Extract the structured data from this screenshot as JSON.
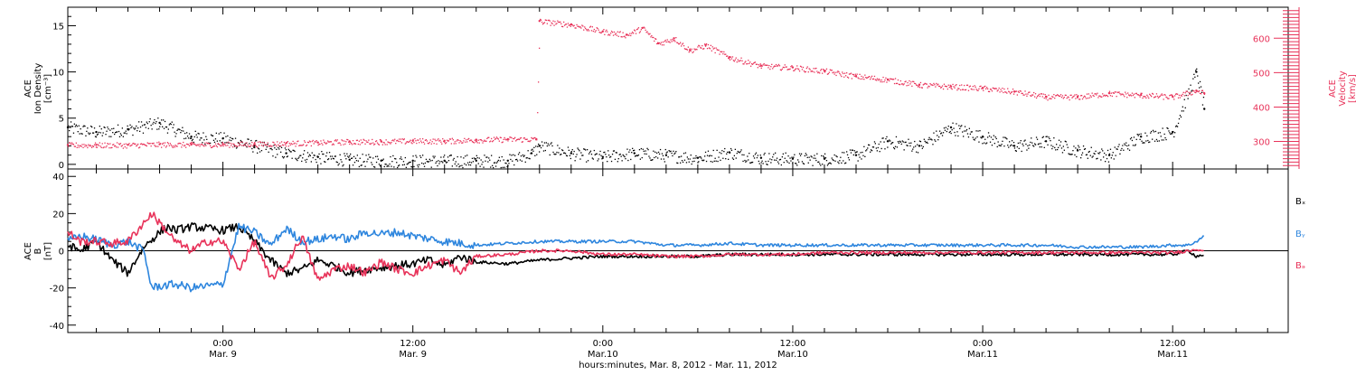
{
  "colors": {
    "density": "#000000",
    "velocity": "#e8335a",
    "bx": "#000000",
    "by": "#2e86de",
    "bz": "#e8335a"
  },
  "x_axis": {
    "title": "hours:minutes, Mar.  8, 2012 - Mar. 11, 2012",
    "ticks": [
      {
        "hours": 24,
        "time": "0:00",
        "date": "Mar. 9"
      },
      {
        "hours": 36,
        "time": "12:00",
        "date": "Mar. 9"
      },
      {
        "hours": 48,
        "time": "0:00",
        "date": "Mar.10"
      },
      {
        "hours": 60,
        "time": "12:00",
        "date": "Mar.10"
      },
      {
        "hours": 72,
        "time": "0:00",
        "date": "Mar.11"
      },
      {
        "hours": 84,
        "time": "12:00",
        "date": "Mar.11"
      }
    ]
  },
  "chart_data": [
    {
      "type": "scatter",
      "panel": "top",
      "xlim_hours": [
        14.2,
        91.3
      ],
      "y_left": {
        "title_lines": [
          "ACE",
          "Ion Density",
          "[cm⁻³]"
        ],
        "ylim": [
          -0.5,
          17
        ],
        "ticks": [
          0,
          5,
          10,
          15
        ]
      },
      "y_right": {
        "title_lines": [
          "ACE",
          "Velocity",
          "[km/s]"
        ],
        "ylim": [
          220,
          690
        ],
        "ticks": [
          300,
          400,
          500,
          600
        ]
      },
      "series": [
        {
          "key": "density",
          "axis": "left",
          "x_hours": [
            14.2,
            16,
            18,
            20,
            22,
            24,
            26,
            28,
            30,
            32,
            34,
            36,
            38,
            40,
            42,
            43.5,
            44,
            46,
            48,
            50,
            52,
            54,
            56,
            58,
            60,
            62,
            64,
            66,
            68,
            70,
            72,
            74,
            76,
            78,
            80,
            82,
            84,
            85.5,
            86
          ],
          "values": [
            4,
            3.5,
            3.8,
            4.5,
            3,
            2.8,
            2,
            1.2,
            0.8,
            0.5,
            0.4,
            0.4,
            0.4,
            0.4,
            0.4,
            1.2,
            2,
            1.2,
            0.8,
            1.2,
            1,
            0.7,
            1.3,
            0.7,
            0.6,
            0.6,
            1,
            2.5,
            2,
            4,
            3,
            2,
            2.5,
            1.5,
            1,
            3,
            3.5,
            10,
            6
          ]
        },
        {
          "key": "velocity",
          "axis": "right",
          "x_hours": [
            14.2,
            16,
            18,
            20,
            22,
            24,
            26,
            28,
            30,
            32,
            34,
            36,
            38,
            40,
            42,
            43.8,
            44,
            46,
            48,
            49.5,
            50.5,
            51.5,
            52.5,
            53.5,
            54.5,
            56,
            58,
            60,
            62,
            64,
            66,
            68,
            70,
            72,
            74,
            76,
            78,
            80,
            82,
            84,
            85.5,
            86
          ],
          "values": [
            290,
            290,
            290,
            292,
            291,
            292,
            293,
            295,
            297,
            300,
            300,
            302,
            302,
            305,
            307,
            307,
            650,
            640,
            620,
            610,
            630,
            585,
            600,
            565,
            580,
            545,
            520,
            515,
            505,
            490,
            480,
            465,
            460,
            455,
            445,
            430,
            430,
            440,
            435,
            430,
            448,
            440
          ]
        }
      ]
    },
    {
      "type": "line",
      "panel": "bottom",
      "xlim_hours": [
        14.2,
        91.3
      ],
      "y_left": {
        "title_lines": [
          "ACE",
          "B",
          "[nT]"
        ],
        "ylim": [
          -44,
          44
        ],
        "ticks": [
          -40,
          -20,
          0,
          20,
          40
        ]
      },
      "legend": [
        {
          "key": "bx",
          "name": "Bₓ"
        },
        {
          "key": "by",
          "name": "Bᵧ"
        },
        {
          "key": "bz",
          "name": "Bₔ"
        }
      ],
      "series": [
        {
          "key": "bx",
          "x_hours": [
            14.2,
            15,
            16,
            17,
            18,
            19,
            20,
            20.5,
            21,
            22,
            23,
            24,
            25,
            26,
            27,
            28,
            29,
            30,
            31,
            32,
            33,
            34,
            35,
            36,
            37,
            38,
            39,
            40,
            42,
            44,
            46,
            48,
            50,
            52,
            54,
            56,
            58,
            60,
            62,
            64,
            66,
            68,
            70,
            72,
            74,
            76,
            78,
            80,
            82,
            84,
            85,
            85.5,
            86
          ],
          "values": [
            3,
            0,
            5,
            -5,
            -12,
            2,
            10,
            13,
            11,
            13,
            12,
            11,
            13,
            5,
            -5,
            -12,
            -10,
            -5,
            -8,
            -12,
            -10,
            -9,
            -8,
            -7,
            -5,
            -8,
            -3,
            -6,
            -7,
            -5,
            -4,
            -3,
            -3,
            -3,
            -3,
            -2,
            -2,
            -2,
            -2,
            -2,
            -2,
            -2,
            -2,
            -2,
            -2,
            -2,
            -2,
            -2,
            -2,
            -2,
            0,
            -3,
            -2
          ]
        },
        {
          "key": "by",
          "x_hours": [
            14.2,
            15,
            16,
            17,
            18,
            19,
            19.5,
            20,
            21,
            22,
            23,
            24,
            25,
            26,
            27,
            28,
            29,
            30,
            31,
            32,
            33,
            34,
            35,
            36,
            38,
            40,
            42,
            44,
            46,
            48,
            50,
            52,
            54,
            56,
            58,
            60,
            62,
            64,
            66,
            68,
            70,
            72,
            74,
            76,
            78,
            80,
            82,
            84,
            85,
            85.5,
            86
          ],
          "values": [
            5,
            8,
            6,
            3,
            5,
            0,
            -20,
            -19,
            -18,
            -20,
            -19,
            -18,
            13,
            10,
            3,
            12,
            5,
            6,
            8,
            6,
            10,
            9,
            10,
            8,
            5,
            3,
            4,
            5,
            5,
            5,
            5,
            3,
            3,
            4,
            3,
            3,
            3,
            3,
            3,
            3,
            3,
            3,
            3,
            3,
            2,
            2,
            2,
            3,
            3,
            5,
            8
          ]
        },
        {
          "key": "bz",
          "x_hours": [
            14.2,
            15,
            16,
            17,
            18,
            19,
            19.5,
            20,
            21,
            22,
            23,
            24,
            25,
            26,
            27,
            28,
            29,
            30,
            31,
            32,
            33,
            34,
            35,
            36,
            37,
            38,
            39,
            40,
            42,
            44,
            46,
            48,
            50,
            52,
            54,
            56,
            58,
            60,
            62,
            64,
            66,
            68,
            70,
            72,
            74,
            76,
            78,
            80,
            82,
            84,
            85,
            85.5,
            86
          ],
          "values": [
            10,
            5,
            5,
            4,
            5,
            15,
            20,
            15,
            5,
            0,
            5,
            5,
            -10,
            5,
            -15,
            -8,
            8,
            -16,
            -10,
            -8,
            -12,
            -6,
            -10,
            -12,
            -8,
            -5,
            -12,
            -3,
            -2,
            0,
            0,
            -2,
            -2,
            -3,
            -3,
            -2,
            -2,
            -2,
            -1,
            -1,
            -1,
            -1,
            -1,
            -1,
            -1,
            -1,
            -1,
            -1,
            -1,
            -1,
            0,
            1,
            0
          ]
        }
      ]
    }
  ]
}
